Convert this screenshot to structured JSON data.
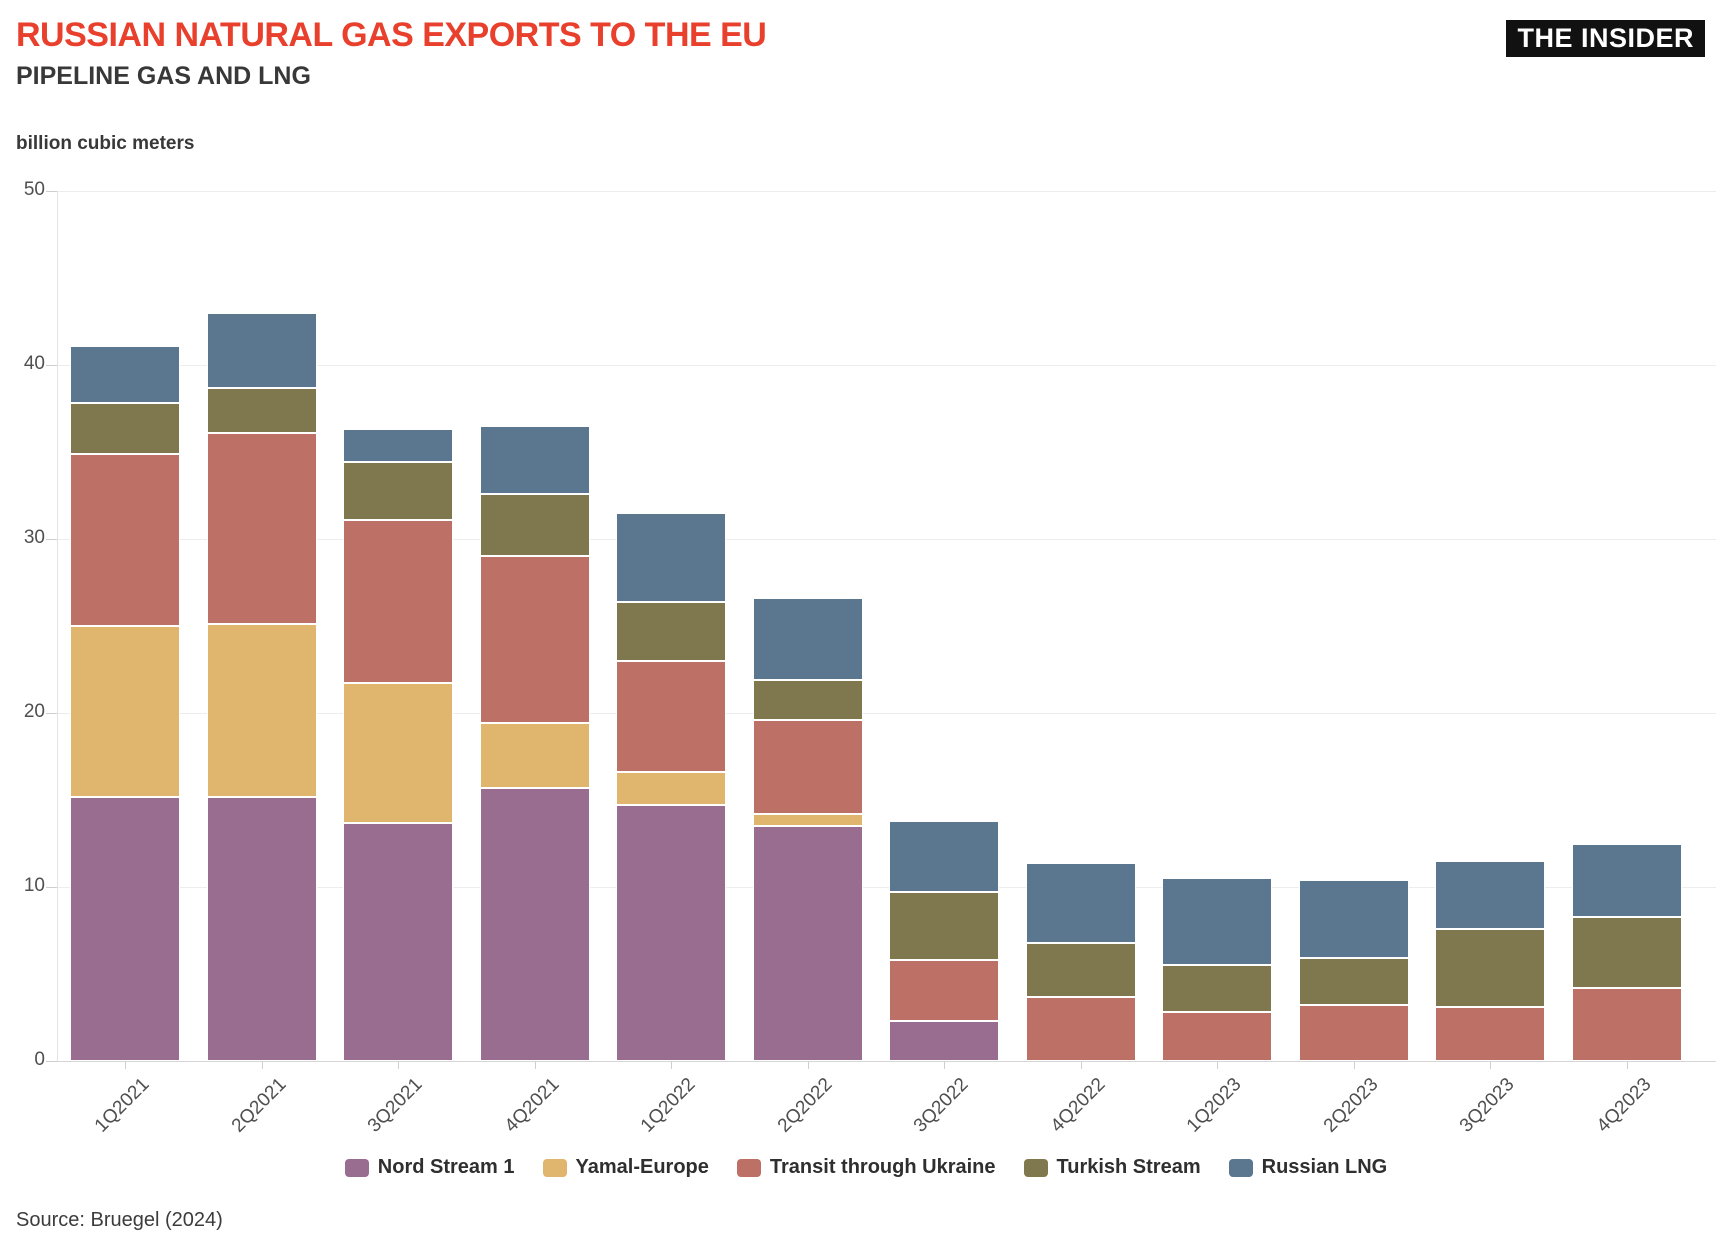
{
  "header": {
    "title": "RUSSIAN NATURAL GAS EXPORTS TO THE EU",
    "subtitle": "PIPELINE GAS AND LNG",
    "logo": "THE INSIDER"
  },
  "axis": {
    "unit_label": "billion cubic meters",
    "y_ticks": [
      50,
      40,
      30,
      20,
      10,
      0
    ]
  },
  "source": "Source: Bruegel (2024)",
  "colors": {
    "title_accent": "#E8402C",
    "logo_bg": "#111111",
    "gridline": "#ededed",
    "axis_text": "#4f4f4f"
  },
  "chart_data": {
    "type": "bar",
    "stacked": true,
    "title": "RUSSIAN NATURAL GAS EXPORTS TO THE EU — PIPELINE GAS AND LNG",
    "xlabel": "",
    "ylabel": "billion cubic meters",
    "ylim": [
      0,
      50
    ],
    "grid": true,
    "legend_position": "bottom",
    "categories": [
      "1Q2021",
      "2Q2021",
      "3Q2021",
      "4Q2021",
      "1Q2022",
      "2Q2022",
      "3Q2022",
      "4Q2022",
      "1Q2023",
      "2Q2023",
      "3Q2023",
      "4Q2023"
    ],
    "series": [
      {
        "name": "Nord Stream 1",
        "color": "#996D90",
        "values": [
          15.2,
          15.2,
          13.7,
          15.7,
          14.7,
          13.5,
          2.3,
          0,
          0,
          0,
          0,
          0
        ]
      },
      {
        "name": "Yamal-Europe",
        "color": "#E0B56D",
        "values": [
          9.8,
          9.9,
          8.0,
          3.7,
          1.9,
          0.7,
          0,
          0,
          0,
          0,
          0,
          0
        ]
      },
      {
        "name": "Transit through Ukraine",
        "color": "#BC7066",
        "values": [
          9.9,
          11.0,
          9.4,
          9.6,
          6.4,
          5.4,
          3.5,
          3.7,
          2.8,
          3.2,
          3.1,
          4.2
        ]
      },
      {
        "name": "Turkish Stream",
        "color": "#7F784E",
        "values": [
          2.9,
          2.6,
          3.3,
          3.6,
          3.4,
          2.3,
          3.9,
          3.1,
          2.7,
          2.7,
          4.5,
          4.1
        ]
      },
      {
        "name": "Russian LNG",
        "color": "#5B768F",
        "values": [
          3.3,
          4.3,
          1.9,
          3.9,
          5.1,
          4.7,
          4.1,
          4.6,
          5.0,
          4.5,
          3.9,
          4.2
        ]
      }
    ],
    "totals": [
      41.1,
      43.0,
      36.3,
      36.5,
      31.5,
      26.6,
      13.8,
      11.4,
      10.5,
      10.4,
      11.5,
      12.5
    ]
  }
}
